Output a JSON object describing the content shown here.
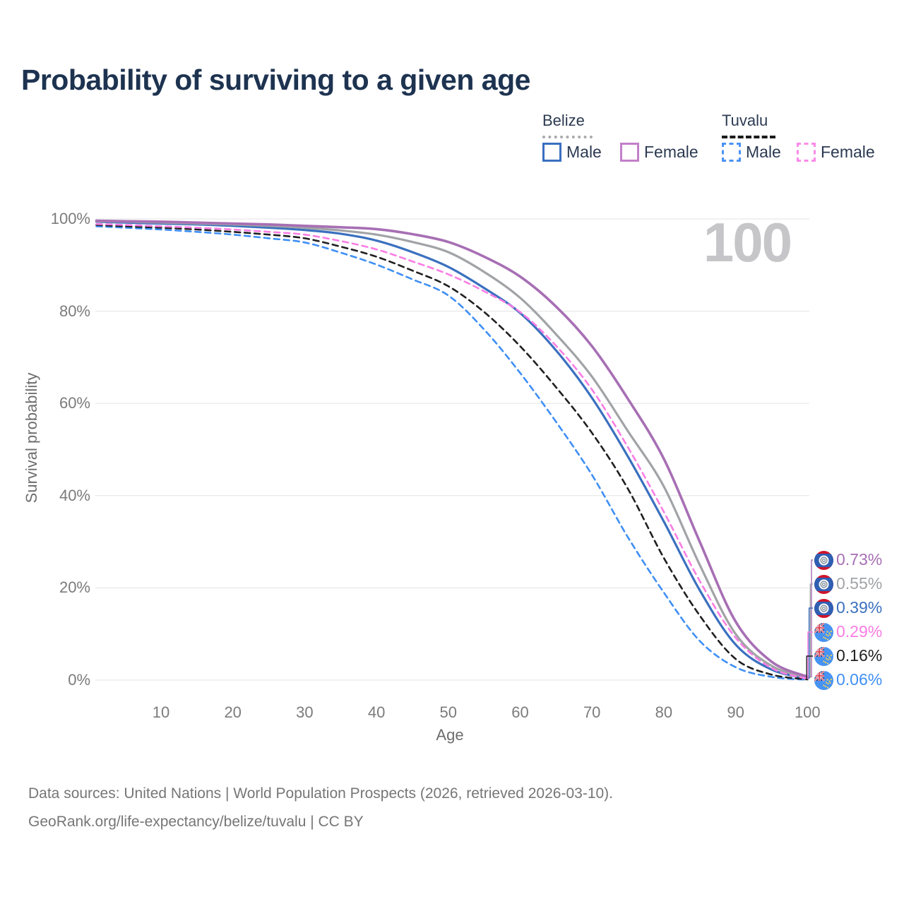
{
  "page": {
    "title": "Probability of surviving to a given age",
    "watermark": "100"
  },
  "legend": {
    "groups": [
      {
        "label": "Belize",
        "line_style": "solid",
        "underline_color": "#a9a9a9",
        "items": [
          {
            "label": "Male",
            "color": "#3a70bf"
          },
          {
            "label": "Female",
            "color": "#c27fc9"
          }
        ]
      },
      {
        "label": "Tuvalu",
        "line_style": "dashed",
        "underline_color": "#1b1b1b",
        "items": [
          {
            "label": "Male",
            "color": "#4a93f5"
          },
          {
            "label": "Female",
            "color": "#fa8ae8"
          }
        ]
      }
    ]
  },
  "chart_data": {
    "type": "line",
    "title": "Probability of surviving to a given age",
    "xlabel": "Age",
    "ylabel": "Survival probability",
    "xlim": [
      1,
      100
    ],
    "ylim": [
      0,
      100
    ],
    "grid": "horizontal",
    "x_ticks": [
      10,
      20,
      30,
      40,
      50,
      60,
      70,
      80,
      90,
      100
    ],
    "y_ticks": [
      {
        "label": "0%",
        "value": 0
      },
      {
        "label": "20%",
        "value": 20
      },
      {
        "label": "40%",
        "value": 40
      },
      {
        "label": "60%",
        "value": 60
      },
      {
        "label": "80%",
        "value": 80
      },
      {
        "label": "100%",
        "value": 100
      }
    ],
    "ages": [
      1,
      5,
      10,
      15,
      20,
      25,
      30,
      35,
      40,
      45,
      50,
      55,
      60,
      65,
      70,
      75,
      80,
      85,
      90,
      95,
      100
    ],
    "series": [
      {
        "name": "Belize Female",
        "country": "Belize",
        "sex": "Female",
        "style": "solid",
        "color": "#a76fb4",
        "flag": "belize",
        "end_label": "0.73%",
        "end_value": 0.73,
        "values": [
          99.6,
          99.5,
          99.4,
          99.2,
          99.0,
          98.8,
          98.5,
          98.2,
          97.8,
          96.7,
          95.0,
          91.8,
          87.5,
          81.0,
          72.4,
          61.0,
          48.0,
          30.0,
          12.7,
          4.0,
          0.73
        ]
      },
      {
        "name": "Belize",
        "country": "Belize",
        "sex": "Both",
        "style": "solid",
        "color": "#a1a3a6",
        "flag": "belize",
        "end_label": "0.55%",
        "end_value": 0.55,
        "values": [
          99.5,
          99.4,
          99.2,
          99.0,
          98.8,
          98.5,
          98.1,
          97.5,
          96.6,
          95.0,
          92.8,
          88.5,
          82.9,
          75.0,
          65.8,
          54.0,
          42.0,
          25.0,
          10.0,
          3.1,
          0.55
        ]
      },
      {
        "name": "Belize Male",
        "country": "Belize",
        "sex": "Male",
        "style": "solid",
        "color": "#3a70bf",
        "flag": "belize",
        "end_label": "0.39%",
        "end_value": 0.39,
        "values": [
          99.4,
          99.2,
          99.0,
          98.8,
          98.5,
          98.1,
          97.6,
          96.8,
          95.3,
          92.8,
          89.6,
          85.0,
          79.6,
          71.5,
          61.2,
          48.5,
          34.4,
          19.5,
          7.7,
          2.3,
          0.39
        ]
      },
      {
        "name": "Tuvalu Female",
        "country": "Tuvalu",
        "sex": "Female",
        "style": "dashed",
        "color": "#fa7de4",
        "flag": "tuvalu",
        "end_label": "0.29%",
        "end_value": 0.29,
        "values": [
          98.9,
          98.7,
          98.4,
          98.1,
          97.7,
          97.2,
          96.6,
          95.2,
          93.4,
          90.8,
          88.0,
          84.3,
          79.8,
          72.5,
          63.0,
          50.5,
          36.5,
          21.5,
          9.2,
          2.6,
          0.29
        ]
      },
      {
        "name": "Tuvalu",
        "country": "Tuvalu",
        "sex": "Both",
        "style": "dashed",
        "color": "#1f1f1f",
        "flag": "tuvalu",
        "end_label": "0.16%",
        "end_value": 0.16,
        "values": [
          98.7,
          98.4,
          98.1,
          97.7,
          97.2,
          96.6,
          95.8,
          94.0,
          91.8,
          88.8,
          85.4,
          79.8,
          72.4,
          63.5,
          53.6,
          41.5,
          26.5,
          14.0,
          4.6,
          1.2,
          0.16
        ]
      },
      {
        "name": "Tuvalu Male",
        "country": "Tuvalu",
        "sex": "Male",
        "style": "dashed",
        "color": "#3f8ff4",
        "flag": "tuvalu",
        "end_label": "0.06%",
        "end_value": 0.06,
        "values": [
          98.4,
          98.1,
          97.7,
          97.2,
          96.6,
          95.8,
          94.9,
          92.7,
          90.1,
          86.9,
          83.4,
          76.0,
          66.6,
          56.0,
          44.5,
          31.0,
          19.0,
          8.5,
          2.8,
          0.7,
          0.06
        ]
      }
    ]
  },
  "footer": {
    "line1": "Data sources: United Nations | World Population Prospects (2026, retrieved 2026-03-10).",
    "line2": "GeoRank.org/life-expectancy/belize/tuvalu | CC BY"
  }
}
